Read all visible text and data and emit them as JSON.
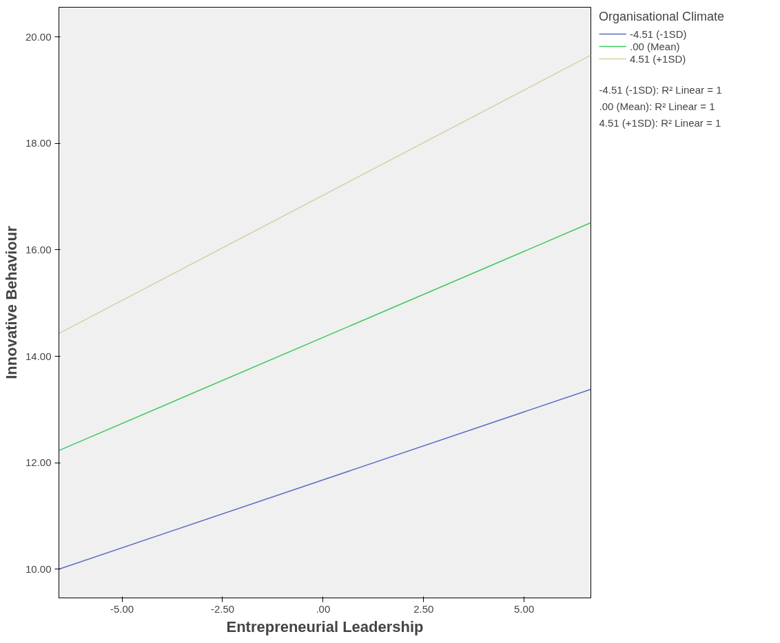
{
  "chart_data": {
    "type": "line",
    "xlabel": "Entrepreneurial Leadership",
    "ylabel": "Innovative Behaviour",
    "legend_title": "Organisational Climate",
    "x": [
      -6.57,
      6.66
    ],
    "series": [
      {
        "name": "-4.51 (-1SD)",
        "color": "#5a6ec4",
        "values": [
          10.0,
          13.38
        ]
      },
      {
        "name": ".00 (Mean)",
        "color": "#3ec95a",
        "values": [
          12.23,
          16.51
        ]
      },
      {
        "name": "4.51 (+1SD)",
        "color": "#d8cfa5",
        "values": [
          14.43,
          19.66
        ]
      }
    ],
    "xlim": [
      -6.57,
      6.66
    ],
    "ylim": [
      9.46,
      20.56
    ],
    "xticks": [
      {
        "value": -5,
        "label": "-5.00"
      },
      {
        "value": -2.5,
        "label": "-2.50"
      },
      {
        "value": 0,
        "label": ".00"
      },
      {
        "value": 2.5,
        "label": "2.50"
      },
      {
        "value": 5,
        "label": "5.00"
      }
    ],
    "yticks": [
      {
        "value": 10,
        "label": "10.00"
      },
      {
        "value": 12,
        "label": "12.00"
      },
      {
        "value": 14,
        "label": "14.00"
      },
      {
        "value": 16,
        "label": "16.00"
      },
      {
        "value": 18,
        "label": "18.00"
      },
      {
        "value": 20,
        "label": "20.00"
      }
    ],
    "grid": false,
    "legend": "right",
    "marker": "none",
    "line_style": "solid",
    "annotations": [
      "-4.51 (-1SD): R² Linear = 1",
      ".00 (Mean): R² Linear = 1",
      "4.51 (+1SD): R² Linear = 1"
    ]
  }
}
